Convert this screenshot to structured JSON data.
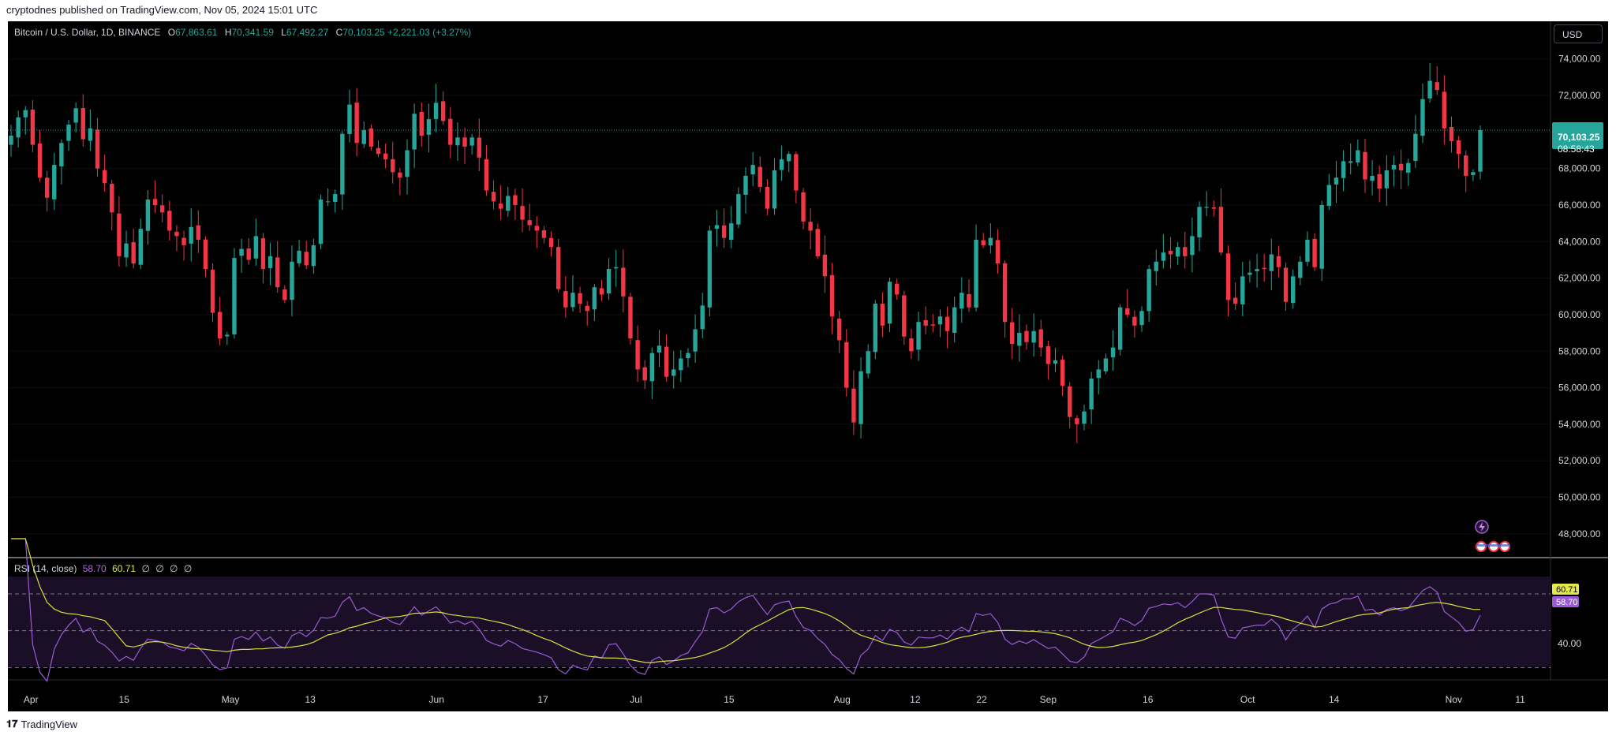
{
  "header": {
    "published": "cryptodnes published on TradingView.com, Nov 05, 2024 15:01 UTC"
  },
  "symbol": {
    "title": "Bitcoin / U.S. Dollar, 1D, BINANCE",
    "o_label": "O",
    "o_value": "67,863.61",
    "h_label": "H",
    "h_value": "70,341.59",
    "l_label": "L",
    "l_value": "67,492.27",
    "c_label": "C",
    "c_value": "70,103.25",
    "change": "+2,221.03 (+3.27%)"
  },
  "currency_button": "USD",
  "price_badge": {
    "price": "70,103.25",
    "countdown": "08:58:43"
  },
  "rsi": {
    "label": "RSI (14, close)",
    "rsi_value": "58.70",
    "ma_value": "60.71",
    "na_values": [
      "∅",
      "∅",
      "∅",
      "∅"
    ],
    "tick_label": "40.00"
  },
  "footer": {
    "brand": "TradingView"
  },
  "colors": {
    "up": "#26a69a",
    "down": "#f23645",
    "rsi": "#9c5bd6",
    "rsi_ma": "#e3e94b",
    "background": "#000000"
  },
  "chart_data": {
    "type": "candlestick",
    "symbol": "BTCUSD",
    "timeframe": "1D",
    "x_start": "2024-03-29",
    "x_end": "2024-11-05",
    "y_ticks": [
      48000,
      50000,
      52000,
      54000,
      56000,
      58000,
      60000,
      62000,
      64000,
      66000,
      68000,
      70000,
      72000,
      74000
    ],
    "y_tick_labels": [
      "48,000.00",
      "50,000.00",
      "52,000.00",
      "54,000.00",
      "56,000.00",
      "58,000.00",
      "60,000.00",
      "62,000.00",
      "64,000.00",
      "66,000.00",
      "68,000.00",
      "70,000.00",
      "72,000.00",
      "74,000.00"
    ],
    "ylim": [
      47000,
      75500
    ],
    "x_tick_labels": [
      "Apr",
      "15",
      "May",
      "13",
      "Jun",
      "17",
      "Jul",
      "15",
      "Aug",
      "12",
      "22",
      "Sep",
      "16",
      "Oct",
      "14",
      "Nov",
      "11"
    ],
    "x_tick_dates": [
      "2024-04-01",
      "2024-04-15",
      "2024-05-01",
      "2024-05-13",
      "2024-06-01",
      "2024-06-17",
      "2024-07-01",
      "2024-07-15",
      "2024-08-01",
      "2024-08-12",
      "2024-08-22",
      "2024-09-01",
      "2024-09-16",
      "2024-10-01",
      "2024-10-14",
      "2024-11-01",
      "2024-11-11"
    ],
    "last_price": 70103.25,
    "closes": [
      69800,
      70800,
      71200,
      69300,
      67500,
      66400,
      68200,
      69400,
      70400,
      71300,
      69600,
      70200,
      68000,
      67200,
      65600,
      63200,
      63900,
      62800,
      64700,
      66300,
      66000,
      65600,
      64600,
      64300,
      63800,
      64800,
      64100,
      62500,
      60100,
      58700,
      58900,
      63100,
      63600,
      63000,
      64300,
      62500,
      63200,
      61500,
      60800,
      62900,
      63500,
      62700,
      63800,
      66300,
      66200,
      66600,
      69900,
      71500,
      69400,
      70100,
      69200,
      68800,
      68500,
      67800,
      67500,
      69000,
      71000,
      69800,
      70700,
      71600,
      70600,
      69300,
      69700,
      69200,
      69700,
      68600,
      66800,
      66200,
      65800,
      66500,
      66000,
      65200,
      64900,
      64600,
      64200,
      63700,
      61400,
      60400,
      61200,
      60600,
      60200,
      61500,
      61100,
      62500,
      62600,
      61000,
      58700,
      57000,
      56400,
      57900,
      58300,
      56600,
      57000,
      57600,
      57900,
      59200,
      60500,
      64600,
      64900,
      64200,
      65000,
      66600,
      67600,
      68200,
      67000,
      65800,
      67900,
      68500,
      68800,
      66800,
      65100,
      64600,
      63200,
      62100,
      59900,
      58600,
      56000,
      54100,
      56900,
      58000,
      60600,
      59400,
      61800,
      61100,
      58800,
      58000,
      59600,
      59400,
      59400,
      59900,
      59100,
      60400,
      61200,
      60400,
      64100,
      63800,
      64200,
      62800,
      59600,
      58400,
      59000,
      58500,
      59100,
      58200,
      57300,
      57500,
      56100,
      54400,
      54000,
      54700,
      56500,
      57000,
      57600,
      58200,
      60400,
      60000,
      59400,
      60200,
      62500,
      62900,
      63400,
      63300,
      63700,
      63200,
      64300,
      65900,
      65900,
      65800,
      63400,
      60800,
      60600,
      62100,
      62300,
      62500,
      62500,
      63300,
      62600,
      60700,
      62100,
      62900,
      64100,
      62600,
      66000,
      67100,
      67500,
      68400,
      68400,
      69000,
      67400,
      67600,
      66900,
      67900,
      68200,
      67900,
      68300,
      69900,
      71800,
      72800,
      72300,
      70200,
      69500,
      68800,
      67600,
      67800,
      70100
    ],
    "rsi_ylim": [
      25,
      85
    ],
    "rsi_bands": [
      30,
      50,
      70
    ],
    "rsi_last": 58.7,
    "rsi_ma_last": 60.71
  }
}
